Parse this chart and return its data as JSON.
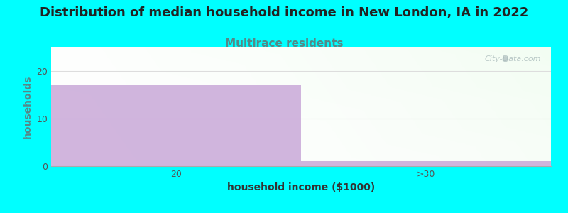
{
  "title": "Distribution of median household income in New London, IA in 2022",
  "subtitle": "Multirace residents",
  "xlabel": "household income ($1000)",
  "ylabel": "households",
  "categories": [
    "20",
    ">30"
  ],
  "values": [
    17,
    1
  ],
  "bar_color": "#c9a8d8",
  "background_color": "#00ffff",
  "ylim": [
    0,
    25
  ],
  "yticks": [
    0,
    10,
    20
  ],
  "title_fontsize": 13,
  "subtitle_fontsize": 11,
  "subtitle_color": "#558888",
  "ylabel_color": "#558888",
  "xlabel_color": "#333333",
  "axis_label_fontsize": 10,
  "tick_fontsize": 9,
  "watermark": "City-Data.com"
}
